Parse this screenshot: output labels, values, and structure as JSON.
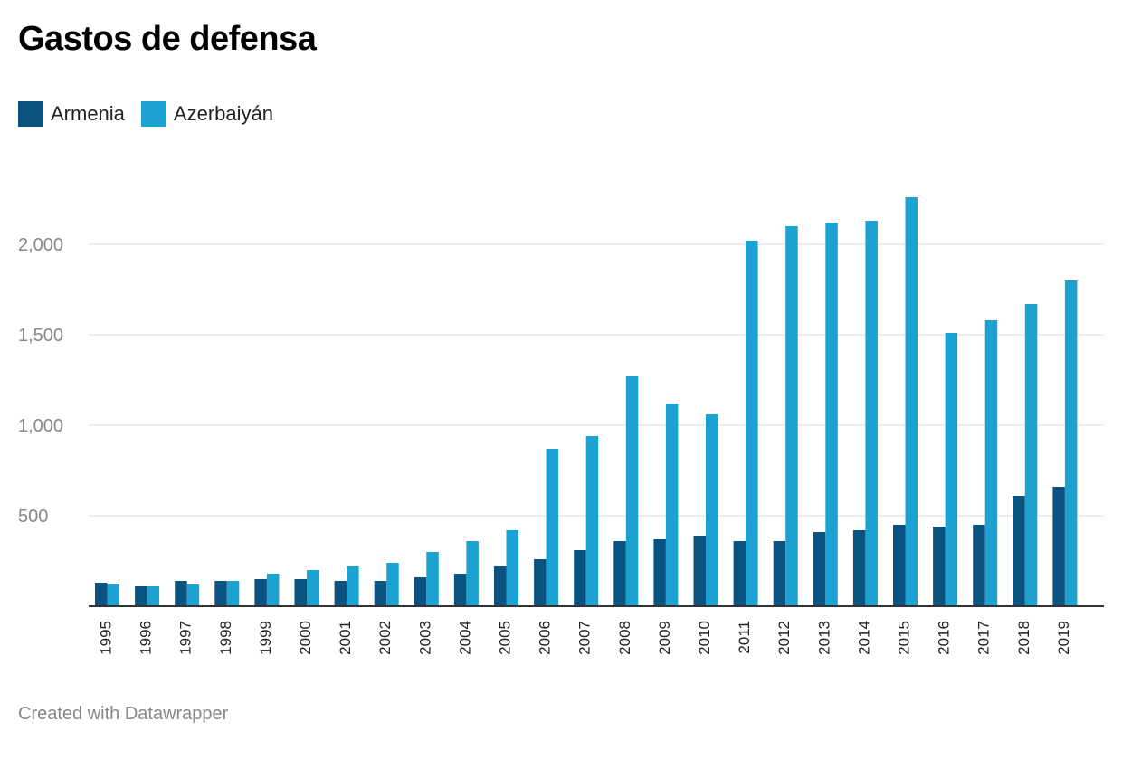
{
  "title": "Gastos de defensa",
  "footer": "Created with Datawrapper",
  "colors": {
    "armenia": "#0a5280",
    "azerbaiyan": "#1ba2d0",
    "grid": "#dddddd",
    "axis": "#333333"
  },
  "legend": [
    {
      "label": "Armenia",
      "color": "#0a5280"
    },
    {
      "label": "Azerbaiyán",
      "color": "#1ba2d0"
    }
  ],
  "chart_data": {
    "type": "bar",
    "title": "Gastos de defensa",
    "xlabel": "",
    "ylabel": "",
    "ylim": [
      0,
      2250
    ],
    "yticks": [
      500,
      1000,
      1500,
      2000
    ],
    "ytick_labels": [
      "500",
      "1,000",
      "1,500",
      "2,000"
    ],
    "grid": true,
    "legend_position": "top-left",
    "categories": [
      "1995",
      "1996",
      "1997",
      "1998",
      "1999",
      "2000",
      "2001",
      "2002",
      "2003",
      "2004",
      "2005",
      "2006",
      "2007",
      "2008",
      "2009",
      "2010",
      "2011",
      "2012",
      "2013",
      "2014",
      "2015",
      "2016",
      "2017",
      "2018",
      "2019"
    ],
    "series": [
      {
        "name": "Armenia",
        "color": "#0a5280",
        "values": [
          130,
          110,
          140,
          140,
          150,
          150,
          140,
          140,
          160,
          180,
          220,
          260,
          310,
          360,
          370,
          390,
          360,
          360,
          410,
          420,
          450,
          440,
          450,
          610,
          660
        ]
      },
      {
        "name": "Azerbaiyán",
        "color": "#1ba2d0",
        "values": [
          120,
          110,
          120,
          140,
          180,
          200,
          220,
          240,
          300,
          360,
          420,
          870,
          940,
          1270,
          1120,
          1060,
          2020,
          2100,
          2120,
          2130,
          2260,
          1510,
          1580,
          1670,
          1800
        ]
      }
    ]
  }
}
